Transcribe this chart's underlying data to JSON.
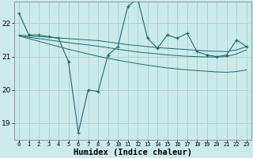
{
  "bg_color": "#cceaea",
  "grid_color": "#aad4d4",
  "line_color": "#1a6b6b",
  "xlabel": "Humidex (Indice chaleur)",
  "xlabel_fontsize": 7.5,
  "yticks": [
    19,
    20,
    21,
    22
  ],
  "xtick_labels": [
    "0",
    "1",
    "2",
    "3",
    "4",
    "5",
    "6",
    "7",
    "8",
    "9",
    "10",
    "11",
    "12",
    "13",
    "14",
    "15",
    "16",
    "17",
    "18",
    "19",
    "20",
    "21",
    "22",
    "23"
  ],
  "xlim": [
    -0.5,
    23.5
  ],
  "ylim": [
    18.5,
    22.65
  ],
  "series": {
    "main": [
      22.3,
      21.65,
      21.65,
      21.6,
      21.55,
      20.85,
      18.72,
      20.0,
      19.95,
      21.05,
      21.3,
      22.5,
      22.75,
      21.55,
      21.25,
      21.65,
      21.55,
      21.7,
      21.15,
      21.05,
      21.0,
      21.05,
      21.5,
      21.3
    ],
    "smooth1": [
      21.65,
      21.62,
      21.6,
      21.58,
      21.56,
      21.54,
      21.52,
      21.5,
      21.48,
      21.44,
      21.4,
      21.36,
      21.33,
      21.3,
      21.27,
      21.25,
      21.23,
      21.21,
      21.19,
      21.17,
      21.16,
      21.15,
      21.2,
      21.3
    ],
    "smooth2": [
      21.62,
      21.58,
      21.54,
      21.5,
      21.46,
      21.42,
      21.38,
      21.35,
      21.31,
      21.27,
      21.22,
      21.18,
      21.14,
      21.11,
      21.08,
      21.05,
      21.03,
      21.01,
      21.0,
      20.99,
      20.99,
      21.0,
      21.08,
      21.2
    ],
    "trend": [
      21.62,
      21.54,
      21.46,
      21.38,
      21.3,
      21.22,
      21.15,
      21.08,
      21.01,
      20.95,
      20.89,
      20.84,
      20.79,
      20.74,
      20.7,
      20.66,
      20.63,
      20.6,
      20.58,
      20.56,
      20.54,
      20.53,
      20.55,
      20.6
    ]
  }
}
